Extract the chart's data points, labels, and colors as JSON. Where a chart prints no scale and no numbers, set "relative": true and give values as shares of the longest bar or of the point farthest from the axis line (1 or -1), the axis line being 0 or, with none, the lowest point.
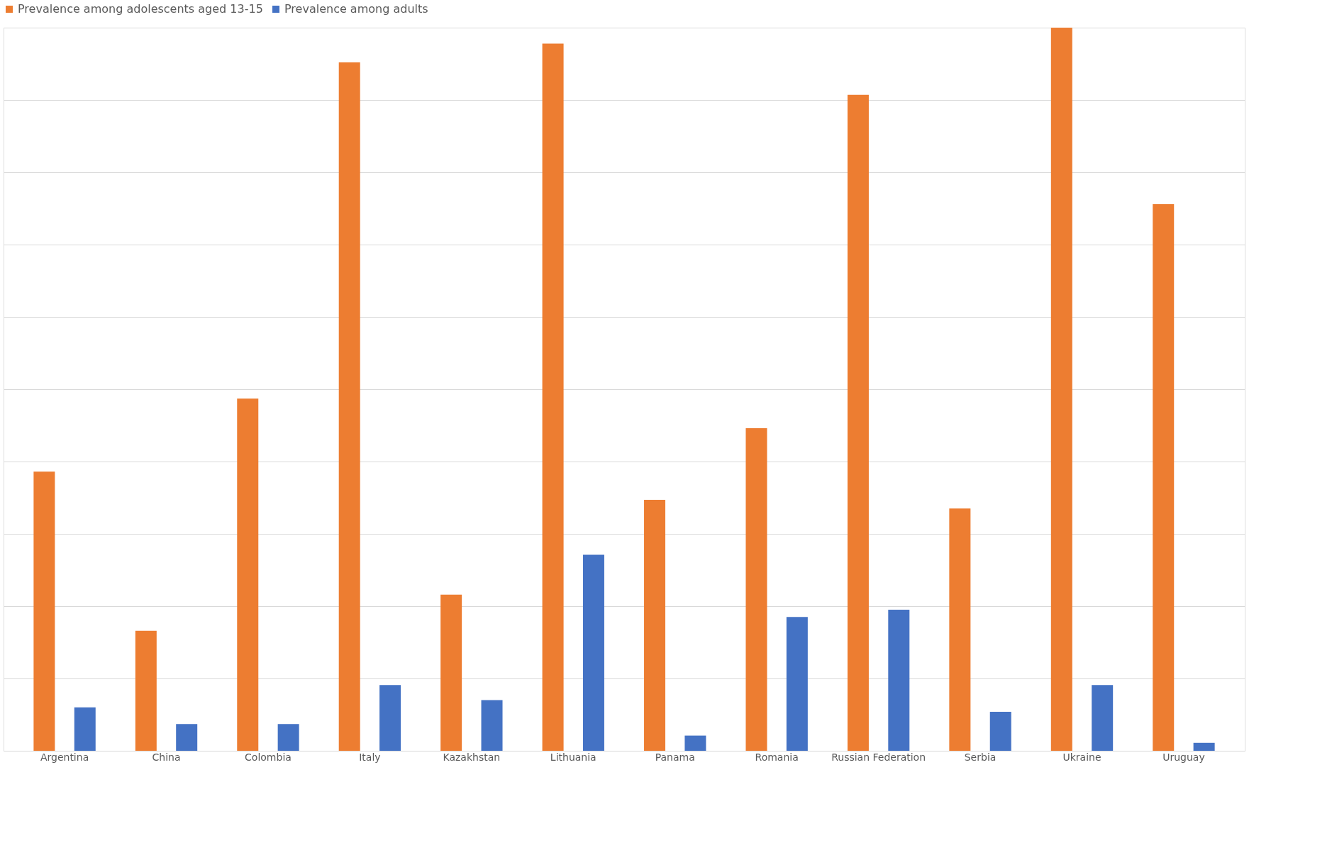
{
  "chart_data": {
    "type": "bar",
    "relative": true,
    "grid": "y",
    "legend": "top",
    "categories": [
      "Argentina",
      "China",
      "Colombia",
      "Italy",
      "Kazakhstan",
      "Lithuania",
      "Panama",
      "Romania",
      "Russian Federation",
      "Serbia",
      "Ukraine",
      "Uruguay"
    ],
    "series": [
      {
        "name": "Prevalence among adolescents aged 13-15",
        "color": "#ed7d31",
        "values": [
          0.386,
          0.166,
          0.487,
          0.952,
          0.216,
          0.978,
          0.347,
          0.446,
          0.907,
          0.335,
          1,
          0.756
        ]
      },
      {
        "name": "Prevalence among adults",
        "color": "#4472c4",
        "values": [
          0.06,
          0.037,
          0.037,
          0.091,
          0.07,
          0.271,
          0.021,
          0.185,
          0.195,
          0.054,
          0.091,
          0.011
        ]
      }
    ]
  }
}
